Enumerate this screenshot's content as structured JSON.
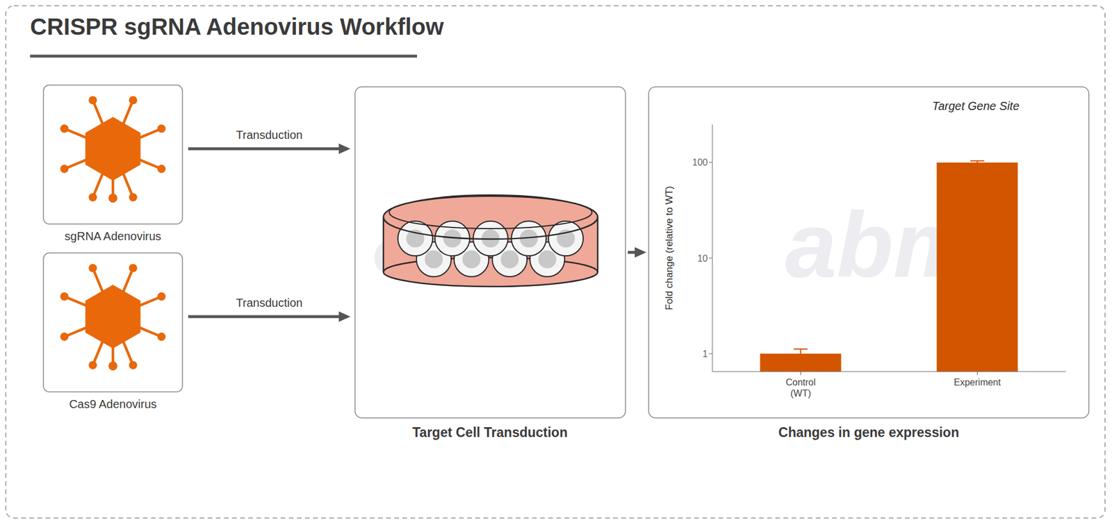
{
  "chart_data": {
    "type": "bar",
    "title": "CRISPR sgRNA Adenovirus Workflow",
    "subtitle": "Target Gene Site",
    "categories": [
      "Control\n(WT)",
      "Experiment"
    ],
    "values": [
      1.0,
      100.0
    ],
    "errors": [
      0.12,
      4.0
    ],
    "color": "#D45500",
    "ylabel": "Fold change (relative to WT)",
    "ylim": [
      0.65,
      250
    ],
    "yticks": [
      1,
      10,
      100
    ],
    "log": "y",
    "grid": false,
    "annotations": [
      "sgRNA Adenovirus",
      "Cas9 Adenovirus",
      "Transduction",
      "Transduction",
      "Target Cell Transduction",
      "Changes in gene expression",
      "abm",
      "abm"
    ]
  }
}
